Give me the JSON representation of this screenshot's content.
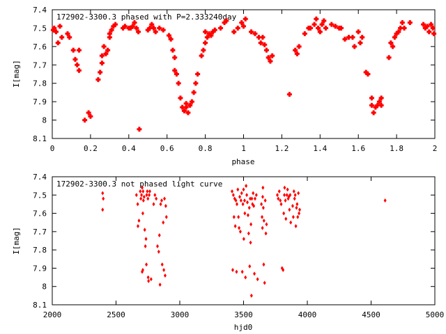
{
  "chart_data": [
    {
      "type": "scatter",
      "title": "172902-3300.3 phased with P=2.333240day",
      "xlabel": "phase",
      "ylabel": "I[mag]",
      "xlim": [
        0,
        2
      ],
      "ylim": [
        8.1,
        7.4
      ],
      "y_inverted": true,
      "grid": false,
      "color": "#ff0000",
      "marker": "filled-cross",
      "x_ticks": [
        "0",
        "0.2",
        "0.4",
        "0.6",
        "0.8",
        "1",
        "1.2",
        "1.4",
        "1.6",
        "1.8",
        "2"
      ],
      "y_ticks": [
        "7.4",
        "7.5",
        "7.6",
        "7.7",
        "7.8",
        "7.9",
        "8",
        "8.1"
      ],
      "points": [
        [
          0.005,
          7.51
        ],
        [
          0.01,
          7.5
        ],
        [
          0.02,
          7.52
        ],
        [
          0.03,
          7.58
        ],
        [
          0.04,
          7.49
        ],
        [
          0.05,
          7.55
        ],
        [
          0.08,
          7.53
        ],
        [
          0.09,
          7.55
        ],
        [
          0.11,
          7.62
        ],
        [
          0.12,
          7.67
        ],
        [
          0.13,
          7.7
        ],
        [
          0.14,
          7.62
        ],
        [
          0.14,
          7.73
        ],
        [
          0.17,
          8.0
        ],
        [
          0.19,
          7.96
        ],
        [
          0.2,
          7.98
        ],
        [
          0.24,
          7.78
        ],
        [
          0.25,
          7.74
        ],
        [
          0.26,
          7.69
        ],
        [
          0.26,
          7.65
        ],
        [
          0.27,
          7.6
        ],
        [
          0.28,
          7.64
        ],
        [
          0.29,
          7.62
        ],
        [
          0.3,
          7.55
        ],
        [
          0.3,
          7.53
        ],
        [
          0.31,
          7.51
        ],
        [
          0.32,
          7.49
        ],
        [
          0.33,
          7.48
        ],
        [
          0.37,
          7.5
        ],
        [
          0.38,
          7.49
        ],
        [
          0.4,
          7.5
        ],
        [
          0.41,
          7.5
        ],
        [
          0.42,
          7.49
        ],
        [
          0.43,
          7.47
        ],
        [
          0.44,
          7.5
        ],
        [
          0.45,
          7.52
        ],
        [
          0.455,
          8.05
        ],
        [
          0.5,
          7.51
        ],
        [
          0.51,
          7.5
        ],
        [
          0.52,
          7.48
        ],
        [
          0.53,
          7.5
        ],
        [
          0.54,
          7.52
        ],
        [
          0.56,
          7.5
        ],
        [
          0.58,
          7.51
        ],
        [
          0.61,
          7.54
        ],
        [
          0.62,
          7.56
        ],
        [
          0.63,
          7.62
        ],
        [
          0.64,
          7.66
        ],
        [
          0.64,
          7.73
        ],
        [
          0.65,
          7.75
        ],
        [
          0.66,
          7.8
        ],
        [
          0.67,
          7.88
        ],
        [
          0.68,
          7.93
        ],
        [
          0.69,
          7.95
        ],
        [
          0.7,
          7.93
        ],
        [
          0.7,
          7.91
        ],
        [
          0.71,
          7.96
        ],
        [
          0.72,
          7.92
        ],
        [
          0.73,
          7.9
        ],
        [
          0.74,
          7.85
        ],
        [
          0.75,
          7.8
        ],
        [
          0.76,
          7.75
        ],
        [
          0.78,
          7.65
        ],
        [
          0.79,
          7.62
        ],
        [
          0.8,
          7.58
        ],
        [
          0.8,
          7.52
        ],
        [
          0.81,
          7.55
        ],
        [
          0.82,
          7.53
        ],
        [
          0.83,
          7.54
        ],
        [
          0.84,
          7.52
        ],
        [
          0.85,
          7.51
        ],
        [
          0.88,
          7.5
        ],
        [
          0.9,
          7.47
        ],
        [
          0.91,
          7.46
        ],
        [
          0.95,
          7.52
        ],
        [
          0.97,
          7.5
        ],
        [
          0.99,
          7.47
        ],
        [
          1.0,
          7.49
        ],
        [
          1.01,
          7.45
        ],
        [
          1.04,
          7.52
        ],
        [
          1.06,
          7.53
        ],
        [
          1.08,
          7.55
        ],
        [
          1.09,
          7.58
        ],
        [
          1.1,
          7.55
        ],
        [
          1.11,
          7.59
        ],
        [
          1.12,
          7.62
        ],
        [
          1.13,
          7.66
        ],
        [
          1.14,
          7.68
        ],
        [
          1.15,
          7.65
        ],
        [
          1.24,
          7.86
        ],
        [
          1.27,
          7.62
        ],
        [
          1.28,
          7.64
        ],
        [
          1.29,
          7.6
        ],
        [
          1.32,
          7.53
        ],
        [
          1.34,
          7.5
        ],
        [
          1.35,
          7.5
        ],
        [
          1.37,
          7.48
        ],
        [
          1.38,
          7.45
        ],
        [
          1.39,
          7.5
        ],
        [
          1.4,
          7.52
        ],
        [
          1.41,
          7.48
        ],
        [
          1.42,
          7.46
        ],
        [
          1.43,
          7.5
        ],
        [
          1.46,
          7.48
        ],
        [
          1.48,
          7.49
        ],
        [
          1.5,
          7.5
        ],
        [
          1.51,
          7.5
        ],
        [
          1.53,
          7.56
        ],
        [
          1.55,
          7.55
        ],
        [
          1.57,
          7.55
        ],
        [
          1.58,
          7.6
        ],
        [
          1.6,
          7.52
        ],
        [
          1.61,
          7.58
        ],
        [
          1.62,
          7.55
        ],
        [
          1.64,
          7.74
        ],
        [
          1.65,
          7.75
        ],
        [
          1.67,
          7.88
        ],
        [
          1.67,
          7.92
        ],
        [
          1.68,
          7.96
        ],
        [
          1.69,
          7.93
        ],
        [
          1.7,
          7.92
        ],
        [
          1.71,
          7.9
        ],
        [
          1.72,
          7.88
        ],
        [
          1.72,
          7.92
        ],
        [
          1.76,
          7.66
        ],
        [
          1.77,
          7.58
        ],
        [
          1.78,
          7.6
        ],
        [
          1.79,
          7.55
        ],
        [
          1.8,
          7.53
        ],
        [
          1.81,
          7.52
        ],
        [
          1.82,
          7.5
        ],
        [
          1.83,
          7.47
        ],
        [
          1.84,
          7.5
        ],
        [
          1.87,
          7.47
        ],
        [
          1.94,
          7.48
        ],
        [
          1.95,
          7.5
        ],
        [
          1.96,
          7.49
        ],
        [
          1.97,
          7.52
        ],
        [
          1.98,
          7.48
        ],
        [
          1.99,
          7.5
        ],
        [
          1.995,
          7.53
        ]
      ]
    },
    {
      "type": "scatter",
      "title": "172902-3300.3 not phased light curve",
      "xlabel": "hjd0",
      "ylabel": "I[mag]",
      "xlim": [
        2000,
        5000
      ],
      "ylim": [
        8.1,
        7.4
      ],
      "y_inverted": true,
      "grid": false,
      "color": "#ff0000",
      "marker": "diamond",
      "x_ticks": [
        "2000",
        "2500",
        "3000",
        "3500",
        "4000",
        "4500",
        "5000"
      ],
      "y_ticks": [
        "7.4",
        "7.5",
        "7.6",
        "7.7",
        "7.8",
        "7.9",
        "8",
        "8.1"
      ],
      "points": [
        [
          2395,
          7.49
        ],
        [
          2400,
          7.52
        ],
        [
          2395,
          7.58
        ],
        [
          2660,
          7.5
        ],
        [
          2670,
          7.55
        ],
        [
          2672,
          7.67
        ],
        [
          2680,
          7.64
        ],
        [
          2690,
          7.48
        ],
        [
          2695,
          7.52
        ],
        [
          2700,
          7.5
        ],
        [
          2705,
          7.46
        ],
        [
          2710,
          7.6
        ],
        [
          2712,
          7.48
        ],
        [
          2715,
          7.53
        ],
        [
          2720,
          7.51
        ],
        [
          2725,
          7.69
        ],
        [
          2730,
          7.78
        ],
        [
          2735,
          7.74
        ],
        [
          2738,
          7.88
        ],
        [
          2740,
          7.5
        ],
        [
          2745,
          7.48
        ],
        [
          2750,
          7.52
        ],
        [
          2752,
          7.95
        ],
        [
          2755,
          7.97
        ],
        [
          2760,
          7.5
        ],
        [
          2765,
          7.48
        ],
        [
          2775,
          7.96
        ],
        [
          2795,
          7.55
        ],
        [
          2805,
          7.5
        ],
        [
          2815,
          7.52
        ],
        [
          2825,
          7.78
        ],
        [
          2835,
          7.81
        ],
        [
          2840,
          7.72
        ],
        [
          2845,
          7.99
        ],
        [
          2850,
          7.55
        ],
        [
          2858,
          7.53
        ],
        [
          2862,
          7.88
        ],
        [
          2870,
          7.65
        ],
        [
          2875,
          7.91
        ],
        [
          2880,
          7.52
        ],
        [
          2885,
          7.94
        ],
        [
          2890,
          7.56
        ],
        [
          2895,
          7.62
        ],
        [
          2705,
          7.92
        ],
        [
          2710,
          7.91
        ],
        [
          3410,
          7.48
        ],
        [
          3415,
          7.91
        ],
        [
          3420,
          7.5
        ],
        [
          3425,
          7.62
        ],
        [
          3430,
          7.52
        ],
        [
          3435,
          7.67
        ],
        [
          3440,
          7.53
        ],
        [
          3445,
          7.92
        ],
        [
          3448,
          7.55
        ],
        [
          3455,
          7.47
        ],
        [
          3460,
          7.62
        ],
        [
          3465,
          7.68
        ],
        [
          3470,
          7.51
        ],
        [
          3475,
          7.7
        ],
        [
          3480,
          7.53
        ],
        [
          3485,
          7.49
        ],
        [
          3490,
          7.92
        ],
        [
          3495,
          7.55
        ],
        [
          3500,
          7.47
        ],
        [
          3502,
          7.74
        ],
        [
          3508,
          7.53
        ],
        [
          3510,
          7.6
        ],
        [
          3515,
          7.95
        ],
        [
          3520,
          7.45
        ],
        [
          3525,
          7.5
        ],
        [
          3530,
          7.54
        ],
        [
          3535,
          7.61
        ],
        [
          3540,
          7.71
        ],
        [
          3545,
          7.57
        ],
        [
          3548,
          7.89
        ],
        [
          3552,
          7.52
        ],
        [
          3555,
          7.76
        ],
        [
          3558,
          7.66
        ],
        [
          3562,
          8.05
        ],
        [
          3565,
          7.52
        ],
        [
          3570,
          7.55
        ],
        [
          3575,
          7.49
        ],
        [
          3580,
          7.56
        ],
        [
          3585,
          7.93
        ],
        [
          3590,
          7.52
        ],
        [
          3600,
          7.5
        ],
        [
          3610,
          7.96
        ],
        [
          3640,
          7.55
        ],
        [
          3645,
          7.62
        ],
        [
          3648,
          7.68
        ],
        [
          3650,
          7.51
        ],
        [
          3652,
          7.46
        ],
        [
          3655,
          7.57
        ],
        [
          3658,
          7.88
        ],
        [
          3660,
          7.64
        ],
        [
          3665,
          7.98
        ],
        [
          3670,
          7.53
        ],
        [
          3675,
          7.71
        ],
        [
          3680,
          7.66
        ],
        [
          3765,
          7.5
        ],
        [
          3772,
          7.52
        ],
        [
          3780,
          7.48
        ],
        [
          3788,
          7.53
        ],
        [
          3795,
          7.55
        ],
        [
          3802,
          7.9
        ],
        [
          3810,
          7.91
        ],
        [
          3815,
          7.6
        ],
        [
          3820,
          7.5
        ],
        [
          3822,
          7.46
        ],
        [
          3828,
          7.53
        ],
        [
          3832,
          7.63
        ],
        [
          3840,
          7.5
        ],
        [
          3845,
          7.47
        ],
        [
          3850,
          7.52
        ],
        [
          3855,
          7.51
        ],
        [
          3860,
          7.58
        ],
        [
          3865,
          7.5
        ],
        [
          3870,
          7.65
        ],
        [
          3885,
          7.56
        ],
        [
          3890,
          7.62
        ],
        [
          3895,
          7.48
        ],
        [
          3900,
          7.52
        ],
        [
          3905,
          7.5
        ],
        [
          3910,
          7.67
        ],
        [
          3915,
          7.57
        ],
        [
          3920,
          7.55
        ],
        [
          3925,
          7.62
        ],
        [
          3930,
          7.49
        ],
        [
          3935,
          7.6
        ],
        [
          3940,
          7.58
        ],
        [
          4610,
          7.53
        ]
      ]
    }
  ]
}
